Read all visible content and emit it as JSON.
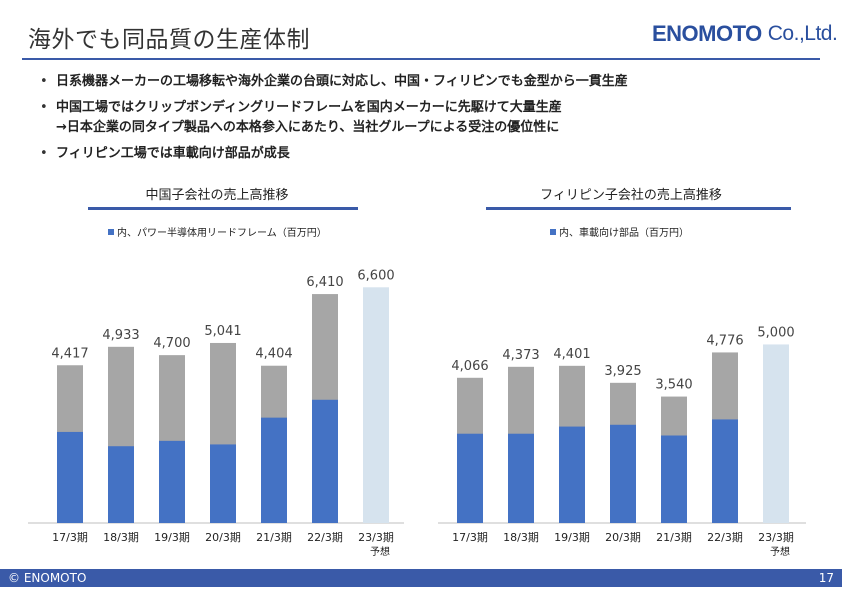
{
  "slide": {
    "title": "海外でも同品質の生産体制",
    "logo_main": "ENOMOTO",
    "logo_suffix": "Co.,Ltd.",
    "bullets": [
      "日系機器メーカーの工場移転や海外企業の台頭に対応し、中国・フィリピンでも金型から一貫生産",
      "中国工場ではクリップボンディングリードフレームを国内メーカーに先駆けて大量生産",
      "→日本企業の同タイプ製品への本格参入にあたり、当社グループによる受注の優位性に",
      "フィリピン工場では車載向け部品が成長"
    ],
    "footer_copyright": "© ENOMOTO",
    "page_number": "17"
  },
  "colors": {
    "accent": "#3a5aa8",
    "bar_blue": "#4472c4",
    "bar_gray": "#a6a6a6",
    "bar_forecast": "#d6e3ee"
  },
  "chart_data": [
    {
      "type": "bar",
      "title": "中国子会社の売上高推移",
      "legend": "内、パワー半導体用リードフレーム（百万円）",
      "categories": [
        "17/3期",
        "18/3期",
        "19/3期",
        "20/3期",
        "21/3期",
        "22/3期",
        "23/3期"
      ],
      "forecast_note": "予想",
      "series": [
        {
          "name": "内、パワー半導体用リードフレーム（百万円）",
          "values": [
            2550,
            2150,
            2300,
            2200,
            2950,
            3450,
            null
          ]
        }
      ],
      "totals": [
        4417,
        4933,
        4700,
        5041,
        4404,
        6410,
        6600
      ],
      "total_labels": [
        "4,417",
        "4,933",
        "4,700",
        "5,041",
        "4,404",
        "6,410",
        "6,600"
      ],
      "ylim": [
        0,
        7000
      ],
      "forecast_index": 6
    },
    {
      "type": "bar",
      "title": "フィリピン子会社の売上高推移",
      "legend": "内、車載向け部品（百万円）",
      "categories": [
        "17/3期",
        "18/3期",
        "19/3期",
        "20/3期",
        "21/3期",
        "22/3期",
        "23/3期"
      ],
      "forecast_note": "予想",
      "series": [
        {
          "name": "内、車載向け部品（百万円）",
          "values": [
            2500,
            2500,
            2700,
            2750,
            2450,
            2900,
            null
          ]
        }
      ],
      "totals": [
        4066,
        4373,
        4401,
        3925,
        3540,
        4776,
        5000
      ],
      "total_labels": [
        "4,066",
        "4,373",
        "4,401",
        "3,925",
        "3,540",
        "4,776",
        "5,000"
      ],
      "ylim": [
        0,
        7000
      ],
      "forecast_index": 6
    }
  ]
}
